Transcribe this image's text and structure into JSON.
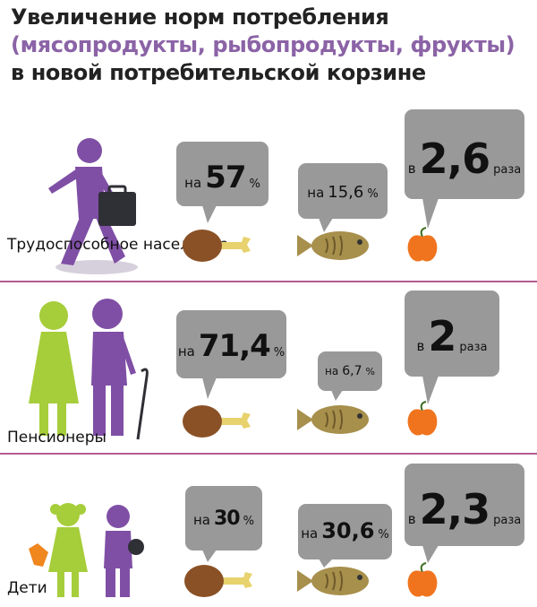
{
  "title": {
    "line1": "Увеличение норм потребления",
    "line2": "(мясопродукты, рыбопродукты, фрукты)",
    "line3": "в новой потребительской корзине"
  },
  "groups": [
    {
      "label": "Трудоспособное население",
      "meat": {
        "prefix": "на",
        "value": "57",
        "suffix": "%"
      },
      "fish": {
        "prefix": "на",
        "value": "15,6",
        "suffix": "%"
      },
      "fruit": {
        "prefix": "в",
        "value": "2,6",
        "suffix": "раза"
      }
    },
    {
      "label": "Пенсионеры",
      "meat": {
        "prefix": "на",
        "value": "71,4",
        "suffix": "%"
      },
      "fish": {
        "prefix": "на",
        "value": "6,7",
        "suffix": "%"
      },
      "fruit": {
        "prefix": "в",
        "value": "2",
        "suffix": "раза"
      }
    },
    {
      "label": "Дети",
      "meat": {
        "prefix": "на",
        "value": "30",
        "suffix": "%"
      },
      "fish": {
        "prefix": "на",
        "value": "30,6",
        "suffix": "%"
      },
      "fruit": {
        "prefix": "в",
        "value": "2,3",
        "suffix": "раза"
      }
    }
  ],
  "colors": {
    "purple": "#7f4fa5",
    "green": "#a6cd3a",
    "bubble": "#999999",
    "divider": "#b55b93",
    "meat": "#8a5126",
    "bone": "#e8d26e",
    "fish": "#a78f4c",
    "apple": "#f0741e"
  }
}
